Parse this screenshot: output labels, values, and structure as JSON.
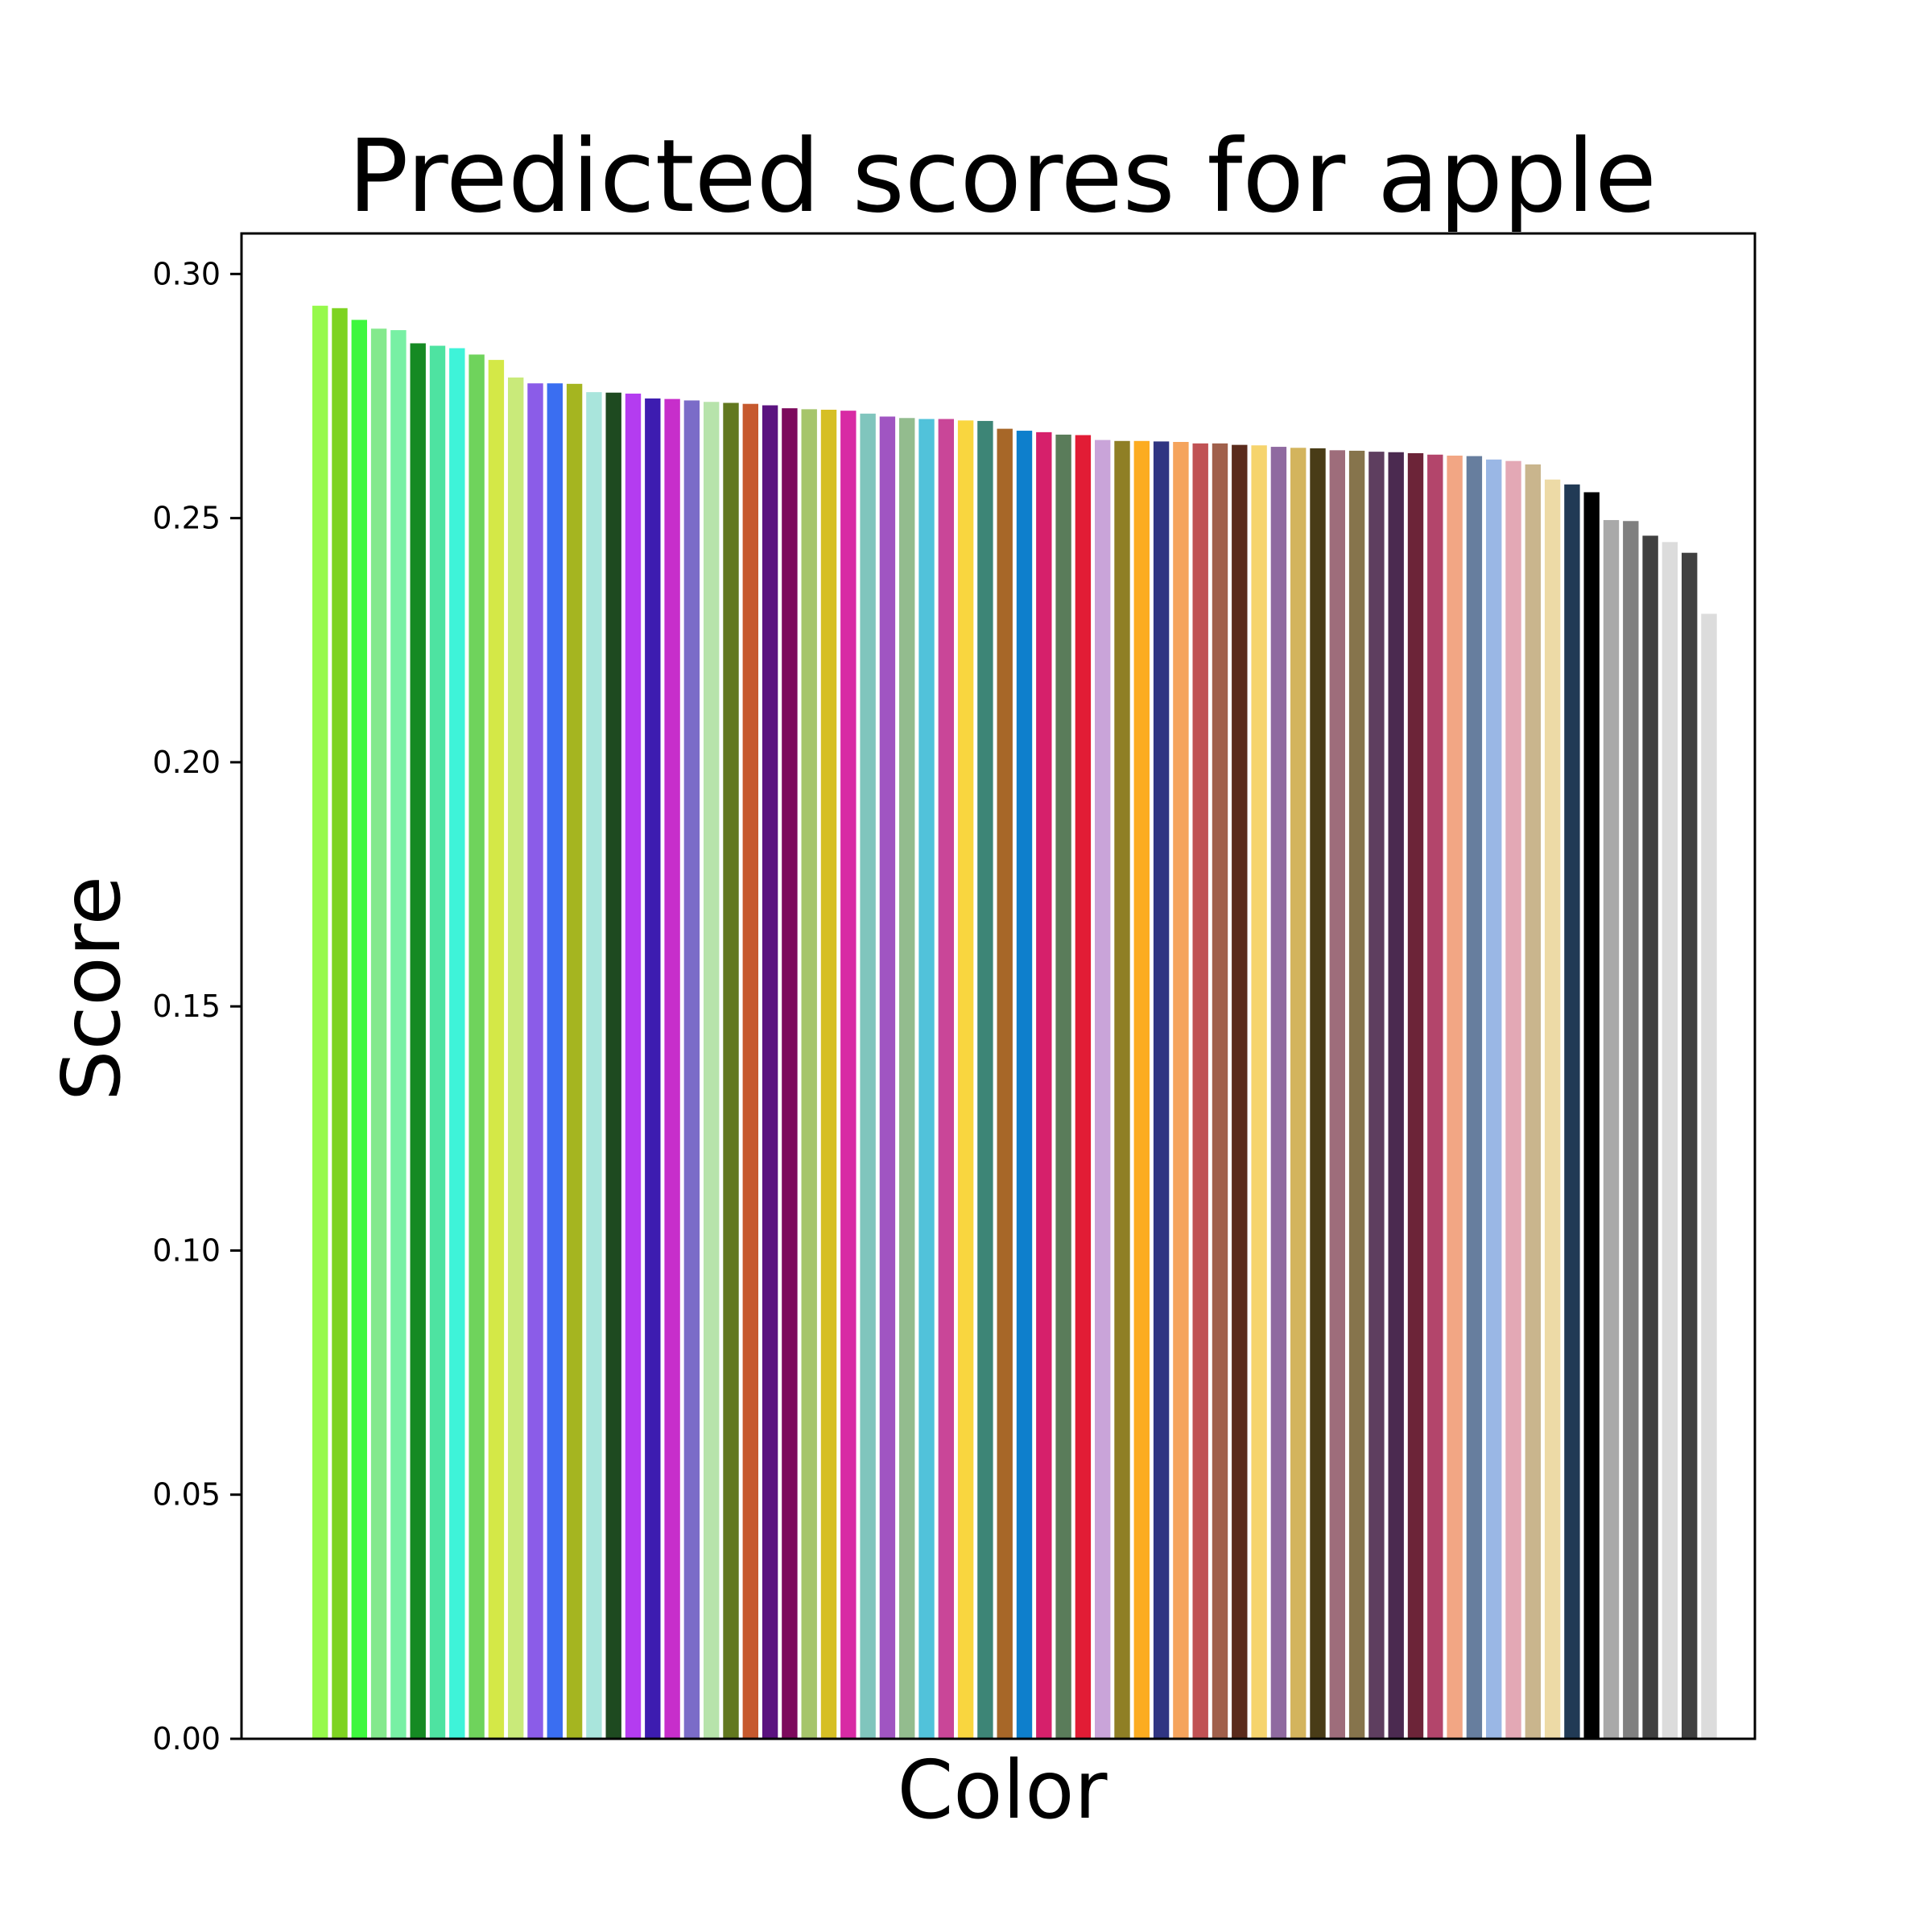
{
  "chart_data": {
    "type": "bar",
    "title": "Predicted scores for apple",
    "xlabel": "Color",
    "ylabel": "Score",
    "ylim": [
      0,
      0.3083
    ],
    "yticks": [
      0.0,
      0.05,
      0.1,
      0.15,
      0.2,
      0.25,
      0.3
    ],
    "ytick_labels": [
      "0.00",
      "0.05",
      "0.10",
      "0.15",
      "0.20",
      "0.25",
      "0.30"
    ],
    "grid": false,
    "legend": "none",
    "values": [
      0.2935,
      0.293,
      0.2906,
      0.2888,
      0.2885,
      0.2858,
      0.2853,
      0.2848,
      0.2835,
      0.2824,
      0.2788,
      0.2776,
      0.2776,
      0.2775,
      0.2758,
      0.2757,
      0.2755,
      0.2745,
      0.2744,
      0.2741,
      0.2738,
      0.2736,
      0.2734,
      0.2731,
      0.2725,
      0.2723,
      0.2722,
      0.272,
      0.2714,
      0.2708,
      0.2705,
      0.2703,
      0.2703,
      0.27,
      0.2699,
      0.2683,
      0.2679,
      0.2676,
      0.2671,
      0.267,
      0.266,
      0.2658,
      0.2658,
      0.2657,
      0.2656,
      0.2653,
      0.2653,
      0.265,
      0.2649,
      0.2646,
      0.2644,
      0.2643,
      0.2639,
      0.2638,
      0.2636,
      0.2635,
      0.2633,
      0.263,
      0.2628,
      0.2627,
      0.262,
      0.2617,
      0.261,
      0.2579,
      0.2569,
      0.2553,
      0.2496,
      0.2494,
      0.2464,
      0.2451,
      0.2429,
      0.2304
    ],
    "colors": [
      "#96f94b",
      "#7ed321",
      "#3ef73e",
      "#84e98d",
      "#78f0a4",
      "#158a23",
      "#4ee3a1",
      "#3ef3d9",
      "#6fd35c",
      "#d4e847",
      "#c9ea7a",
      "#8b5ce8",
      "#3a6ef1",
      "#a5b520",
      "#a9e5dc",
      "#1e4a20",
      "#b43cf0",
      "#3d1cb0",
      "#c72ecb",
      "#7b6cc8",
      "#b7e3ab",
      "#62781f",
      "#c6592e",
      "#5b1380",
      "#7d0a5d",
      "#a6c56b",
      "#d6bf24",
      "#d82ba4",
      "#80c5bd",
      "#a055c2",
      "#93bc8e",
      "#51c2da",
      "#c94698",
      "#f9d63f",
      "#3d8576",
      "#a76728",
      "#0e7fcc",
      "#d6206b",
      "#5a7c5a",
      "#e21c35",
      "#c9a4d9",
      "#8f7f25",
      "#fcac20",
      "#303582",
      "#f5a45c",
      "#c05254",
      "#a0604b",
      "#5a2b1c",
      "#f6d46d",
      "#8f6aa0",
      "#d3b45d",
      "#493c17",
      "#9e6d7b",
      "#86744c",
      "#5e3e5f",
      "#4b2a50",
      "#6c2438",
      "#b3456b",
      "#f2a684",
      "#677e9e",
      "#9ab7e5",
      "#e3a8b5",
      "#c9b58d",
      "#eddaa6",
      "#213a55",
      "#000000",
      "#a9a9a9",
      "#808080",
      "#404040",
      "#dcdcdc",
      "#404040",
      "#dcdcdc"
    ]
  }
}
